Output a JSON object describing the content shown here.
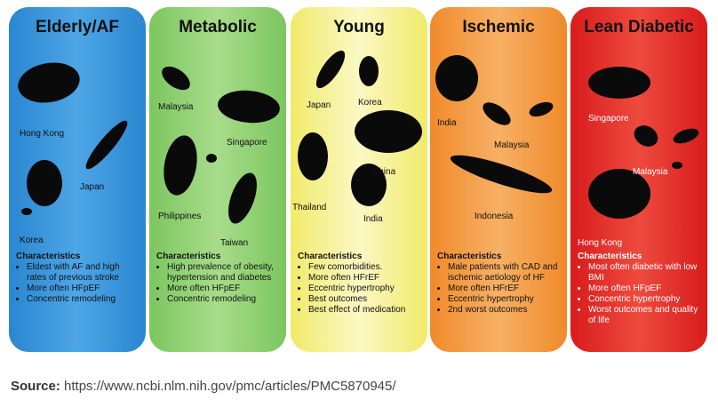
{
  "panels": [
    {
      "title": "Elderly/AF",
      "countries": [
        "Hong Kong",
        "Japan",
        "Korea"
      ],
      "characteristics_heading": "Characteristics",
      "characteristics": [
        "Eldest with AF and high rates of previous stroke",
        "More often HFpEF",
        "Concentric remodeling"
      ]
    },
    {
      "title": "Metabolic",
      "countries": [
        "Malaysia",
        "Singapore",
        "Philippines",
        "Taiwan"
      ],
      "characteristics_heading": "Characteristics",
      "characteristics": [
        "High prevalence of obesity, hypertension and diabetes",
        "More often HFpEF",
        "Concentric remodeling"
      ]
    },
    {
      "title": "Young",
      "countries": [
        "Japan",
        "Korea",
        "China",
        "Thailand",
        "India"
      ],
      "characteristics_heading": "Characteristics",
      "characteristics": [
        "Few comorbidities.",
        "More often HFrEF",
        "Eccentric hypertrophy",
        "Best outcomes",
        "Best effect of medication"
      ]
    },
    {
      "title": "Ischemic",
      "countries": [
        "India",
        "Malaysia",
        "Indonesia"
      ],
      "characteristics_heading": "Characteristics",
      "characteristics": [
        "Male patients with CAD and ischemic aetiology of HF",
        "More often HFrEF",
        "Eccentric hypertrophy",
        "2nd worst outcomes"
      ]
    },
    {
      "title": "Lean Diabetic",
      "countries": [
        "Singapore",
        "Malaysia",
        "Hong Kong"
      ],
      "characteristics_heading": "Characteristics",
      "characteristics": [
        "Most often diabetic with low BMI",
        "More often HFpEF",
        "Concentric hypertrophy",
        "Worst outcomes and quality of life"
      ]
    }
  ],
  "source": {
    "label": "Source:",
    "url": "https://www.ncbi.nlm.nih.gov/pmc/articles/PMC5870945/"
  }
}
